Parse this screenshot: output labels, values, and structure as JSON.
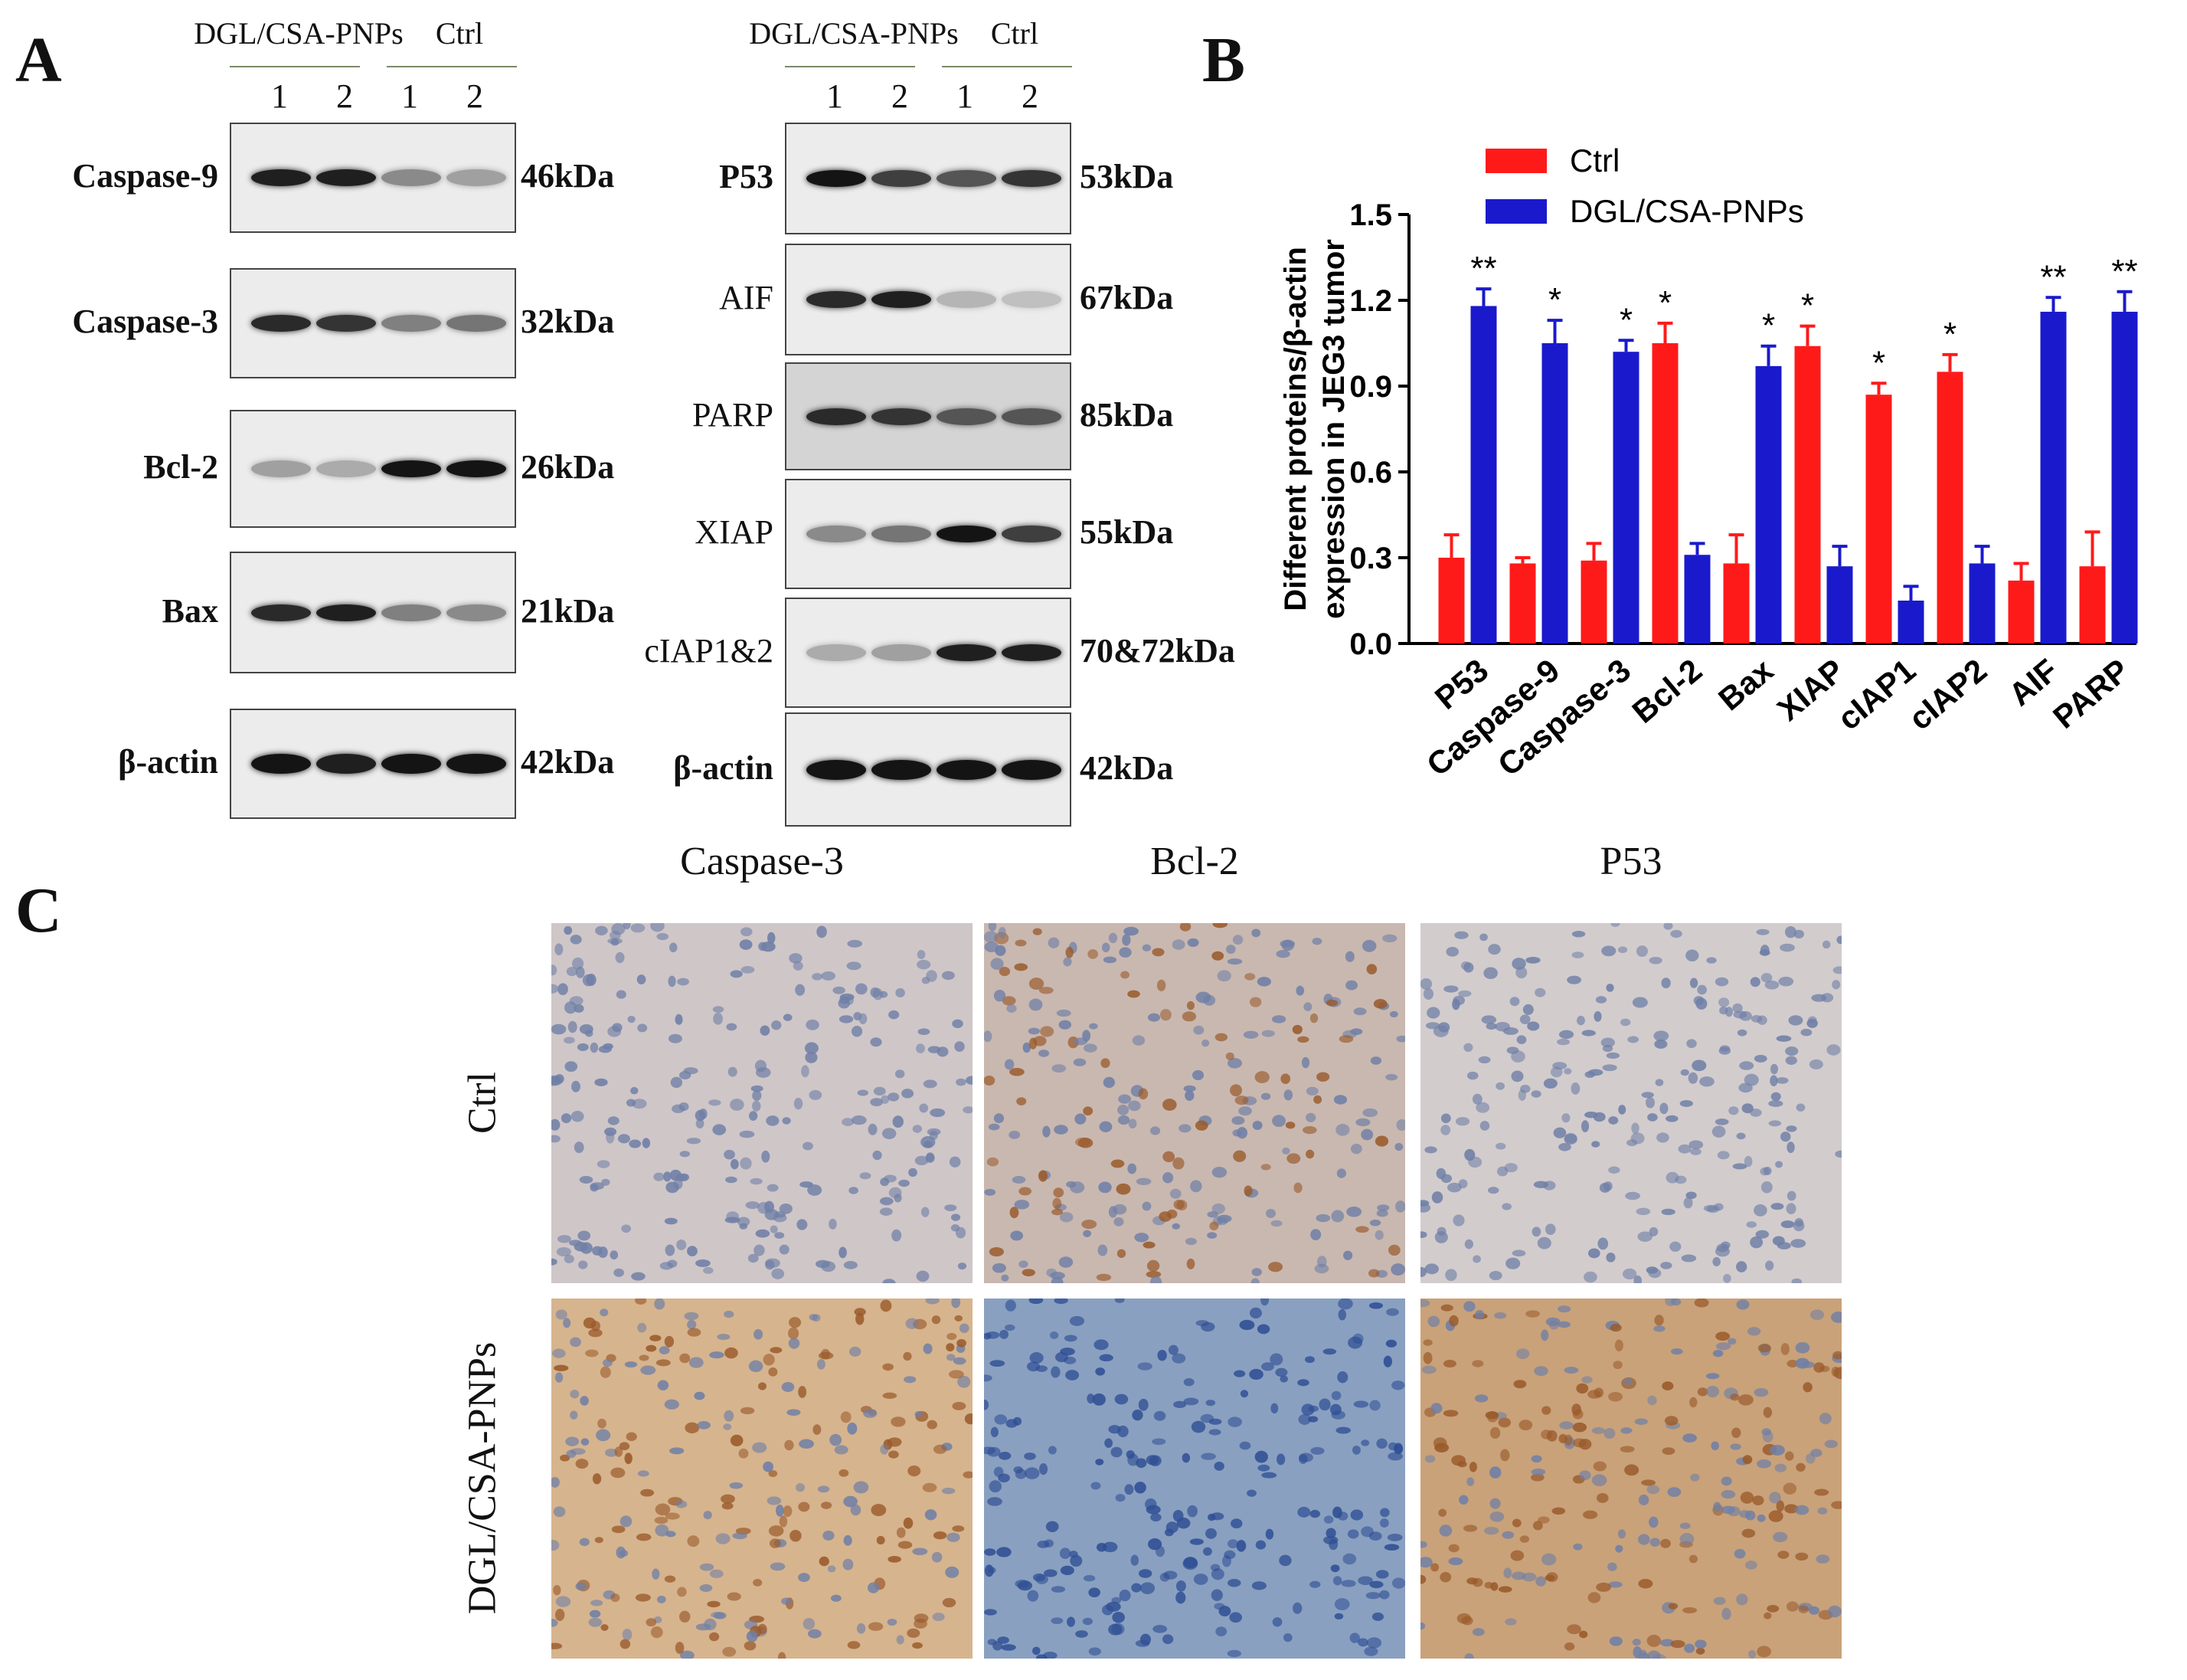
{
  "panels": {
    "a": "A",
    "b": "B",
    "c": "C"
  },
  "blot": {
    "group_treated": "DGL/CSA-PNPs",
    "group_ctrl": "Ctrl",
    "lanes": [
      "1",
      "2",
      "1",
      "2"
    ],
    "left_rows": [
      {
        "label": "Caspase-9",
        "kda": "46kDa",
        "bands": [
          0.95,
          0.95,
          0.45,
          0.35
        ]
      },
      {
        "label": "Caspase-3",
        "kda": "32kDa",
        "bands": [
          0.9,
          0.85,
          0.5,
          0.55
        ]
      },
      {
        "label": "Bcl-2",
        "kda": "26kDa",
        "bands": [
          0.35,
          0.3,
          1.0,
          1.0
        ]
      },
      {
        "label": "Bax",
        "kda": "21kDa",
        "bands": [
          0.9,
          0.95,
          0.5,
          0.45
        ]
      },
      {
        "label": "β-actin",
        "kda": "42kDa",
        "bands": [
          1.0,
          0.95,
          1.0,
          1.0
        ]
      }
    ],
    "right_rows": [
      {
        "label": "P53",
        "kda": "53kDa",
        "bands": [
          1.0,
          0.8,
          0.7,
          0.85
        ]
      },
      {
        "label": "AIF",
        "kda": "67kDa",
        "bands": [
          0.9,
          0.95,
          0.25,
          0.2
        ]
      },
      {
        "label": "PARP",
        "kda": "85kDa",
        "bands": [
          0.9,
          0.85,
          0.7,
          0.7
        ]
      },
      {
        "label": "XIAP",
        "kda": "55kDa",
        "bands": [
          0.45,
          0.55,
          1.0,
          0.8
        ]
      },
      {
        "label": "cIAP1&2",
        "kda": "70&72kDa",
        "bands": [
          0.3,
          0.35,
          0.95,
          0.95
        ]
      },
      {
        "label": "β-actin",
        "kda": "42kDa",
        "bands": [
          1.0,
          1.0,
          1.0,
          1.0
        ]
      }
    ]
  },
  "chart_data": {
    "type": "bar",
    "ylabel": "Different proteins/β-actin expression in JEG3 tumor",
    "xlabel": "",
    "ylim": [
      0,
      1.5
    ],
    "yticks": [
      "0.0",
      "0.3",
      "0.6",
      "0.9",
      "1.2",
      "1.5"
    ],
    "legend_position": "top-left",
    "categories": [
      "P53",
      "Caspase-9",
      "Caspase-3",
      "Bcl-2",
      "Bax",
      "XIAP",
      "cIAP1",
      "cIAP2",
      "AIF",
      "PARP"
    ],
    "series": [
      {
        "name": "Ctrl",
        "color": "#ff1a1a",
        "values": [
          0.3,
          0.28,
          0.29,
          1.05,
          0.28,
          1.04,
          0.87,
          0.95,
          0.22,
          0.27
        ],
        "errors": [
          0.08,
          0.02,
          0.06,
          0.07,
          0.1,
          0.07,
          0.04,
          0.06,
          0.06,
          0.12
        ]
      },
      {
        "name": "DGL/CSA-PNPs",
        "color": "#1a1acc",
        "values": [
          1.18,
          1.05,
          1.02,
          0.31,
          0.97,
          0.27,
          0.15,
          0.28,
          1.16,
          1.16
        ],
        "errors": [
          0.06,
          0.08,
          0.04,
          0.04,
          0.07,
          0.07,
          0.05,
          0.06,
          0.05,
          0.07
        ]
      }
    ],
    "significance": [
      "**",
      "*",
      "*",
      "*",
      "*",
      "*",
      "*",
      "*",
      "**",
      "**"
    ],
    "significance_on_series": [
      1,
      1,
      1,
      0,
      1,
      0,
      0,
      0,
      1,
      1
    ]
  },
  "ihc": {
    "columns": [
      "Caspase-3",
      "Bcl-2",
      "P53"
    ],
    "rows": [
      "Ctrl",
      "DGL/CSA-PNPs"
    ],
    "bg_colors": [
      "#cfc6c8",
      "#c9b8b0",
      "#d2cccd",
      "#d6b48e",
      "#8aa0c0",
      "#c9a27a"
    ]
  }
}
